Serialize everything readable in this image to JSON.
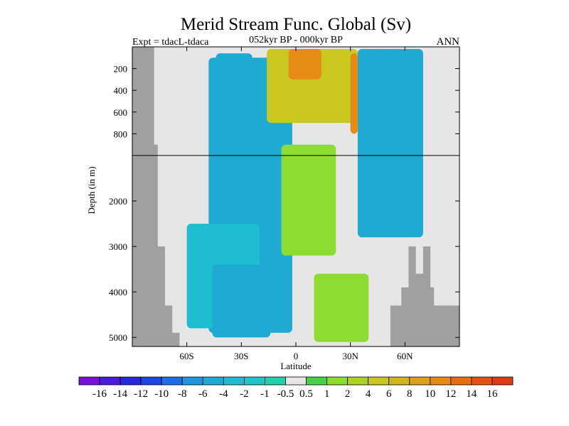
{
  "chart_data": {
    "type": "heatmap",
    "title": "Merid Stream Func. Global (Sv)",
    "subtitle_left": "Expt = tdacL-tdaca",
    "subtitle_center": "052kyr BP - 000kyr BP",
    "subtitle_right": "ANN",
    "xlabel": "Latitude",
    "ylabel": "Depth (in m)",
    "xlim": [
      -90,
      90
    ],
    "x_ticks": [
      {
        "value": -60,
        "label": "60S"
      },
      {
        "value": -30,
        "label": "30S"
      },
      {
        "value": 0,
        "label": "0"
      },
      {
        "value": 30,
        "label": "30N"
      },
      {
        "value": 60,
        "label": "60N"
      }
    ],
    "depth_range": [
      0,
      5200
    ],
    "depth_break_m": 1000,
    "y_ticks_upper": [
      {
        "value": 200,
        "label": "200"
      },
      {
        "value": 400,
        "label": "400"
      },
      {
        "value": 600,
        "label": "600"
      },
      {
        "value": 800,
        "label": "800"
      }
    ],
    "y_ticks_lower": [
      {
        "value": 2000,
        "label": "2000"
      },
      {
        "value": 3000,
        "label": "3000"
      },
      {
        "value": 4000,
        "label": "4000"
      },
      {
        "value": 5000,
        "label": "5000"
      }
    ],
    "colorbar": {
      "labels": [
        "-16",
        "-14",
        "-12",
        "-10",
        "-8",
        "-6",
        "-4",
        "-2",
        "-1",
        "-0.5",
        "0.5",
        "1",
        "2",
        "4",
        "6",
        "8",
        "10",
        "12",
        "14",
        "16"
      ],
      "colors": [
        "#7a10dc",
        "#4a1ce0",
        "#2828dc",
        "#1e46e6",
        "#1e6ee6",
        "#1e96dc",
        "#1eaad2",
        "#1ebed2",
        "#1ec8c8",
        "#1ed2aa",
        "#e6e6e6",
        "#46d246",
        "#8cdc32",
        "#aad21e",
        "#c8c81e",
        "#d2b41e",
        "#dca01e",
        "#e68c14",
        "#e66e14",
        "#e65014",
        "#dc3c14"
      ]
    },
    "land_color": "#a0a0a0",
    "background_color": "#e6e6e6",
    "fields": [
      {
        "name": "southern-ocean-cell",
        "lat_range": [
          -48,
          -2
        ],
        "depth_range": [
          100,
          4900
        ],
        "level": "-4"
      },
      {
        "name": "southern-deep-band",
        "lat_range": [
          -60,
          -20
        ],
        "depth_range": [
          2500,
          4800
        ],
        "level": "-2"
      },
      {
        "name": "southern-shallow-cell",
        "lat_range": [
          -44,
          -24
        ],
        "depth_range": [
          60,
          900
        ],
        "level": "-4"
      },
      {
        "name": "equatorial-positive-band",
        "lat_range": [
          -8,
          22
        ],
        "depth_range": [
          900,
          3200
        ],
        "level": "1"
      },
      {
        "name": "tropical-positive-cell",
        "lat_range": [
          -16,
          34
        ],
        "depth_range": [
          20,
          700
        ],
        "level": "4"
      },
      {
        "name": "tropical-positive-core",
        "lat_range": [
          -4,
          14
        ],
        "depth_range": [
          20,
          300
        ],
        "level": "10"
      },
      {
        "name": "northern-deep-band",
        "lat_range": [
          10,
          40
        ],
        "depth_range": [
          3600,
          5100
        ],
        "level": "1"
      },
      {
        "name": "northern-negative-cell",
        "lat_range": [
          34,
          70
        ],
        "depth_range": [
          20,
          2800
        ],
        "level": "-4"
      },
      {
        "name": "subpolar-positive-streak",
        "lat_range": [
          30,
          34
        ],
        "depth_range": [
          60,
          800
        ],
        "level": "10"
      },
      {
        "name": "deep-southern-negative",
        "lat_range": [
          -46,
          -14
        ],
        "depth_range": [
          3400,
          5000
        ],
        "level": "-4"
      }
    ]
  }
}
